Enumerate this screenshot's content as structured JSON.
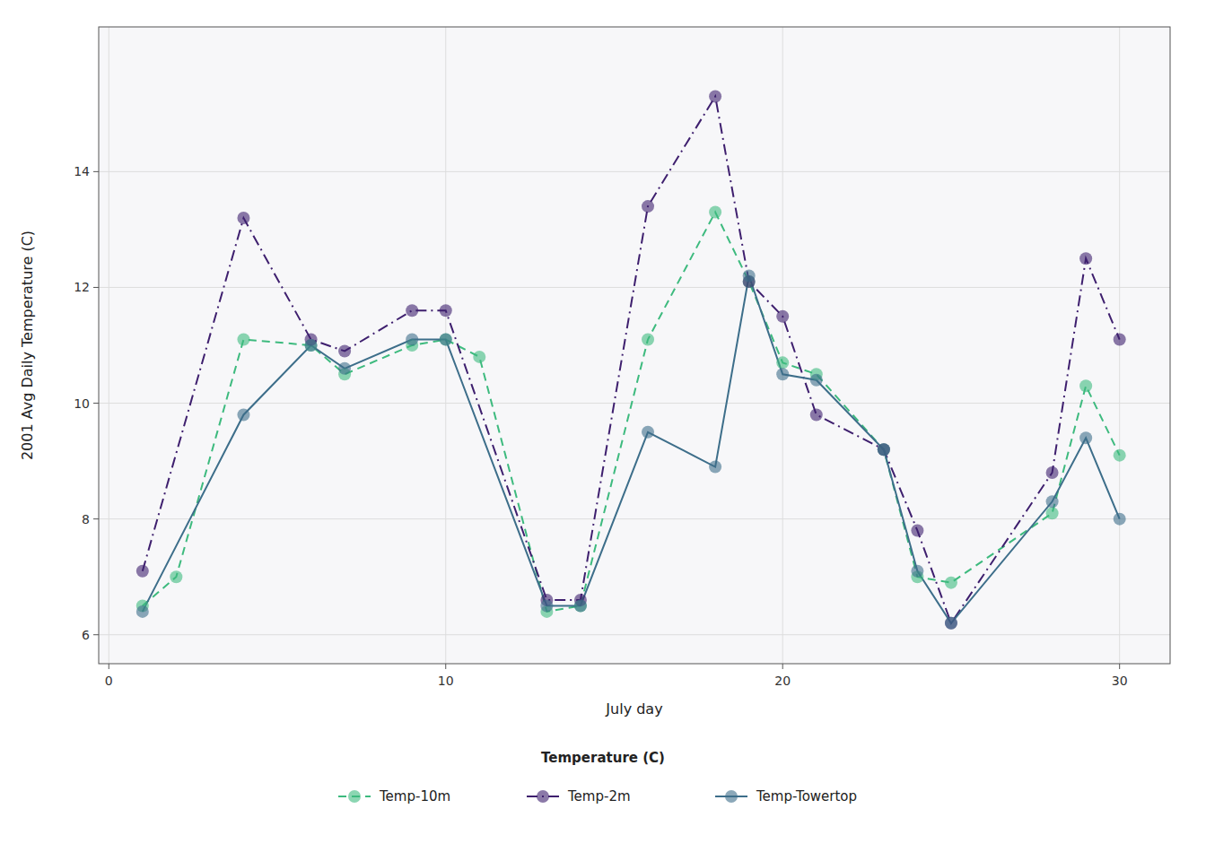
{
  "chart_data": {
    "type": "line",
    "x_label": "July day",
    "y_label": "2001 Avg Daily Temperature (C)",
    "legend_title": "Temperature (C)",
    "legend": "bottom",
    "grid": true,
    "xlim": [
      -0.3,
      31.5
    ],
    "ylim": [
      5.5,
      16.5
    ],
    "xticks": [
      0,
      10,
      20,
      30
    ],
    "yticks": [
      6,
      8,
      10,
      12,
      14
    ],
    "series": [
      {
        "name": "Temp-10m",
        "color": "#3dba7e",
        "line_style": "dashed",
        "marker": "circle",
        "x": [
          1,
          2,
          4,
          6,
          7,
          9,
          10,
          11,
          13,
          14,
          16,
          18,
          19,
          20,
          21,
          23,
          24,
          25,
          28,
          29,
          30
        ],
        "values": [
          6.5,
          7.0,
          11.1,
          11.0,
          10.5,
          11.0,
          11.1,
          10.8,
          6.4,
          6.5,
          11.1,
          13.3,
          12.1,
          10.7,
          10.5,
          9.2,
          7.0,
          6.9,
          8.1,
          10.3,
          9.1
        ]
      },
      {
        "name": "Temp-2m",
        "color": "#3e1f6e",
        "line_style": "dashdot",
        "marker": "circle",
        "x": [
          1,
          4,
          6,
          7,
          9,
          10,
          13,
          14,
          16,
          18,
          19,
          20,
          21,
          23,
          24,
          25,
          28,
          29,
          30
        ],
        "values": [
          7.1,
          13.2,
          11.1,
          10.9,
          11.6,
          11.6,
          6.6,
          6.6,
          13.4,
          15.3,
          12.1,
          11.5,
          9.8,
          9.2,
          7.8,
          6.2,
          8.8,
          12.5,
          11.1
        ]
      },
      {
        "name": "Temp-Towertop",
        "color": "#3d6e8a",
        "line_style": "solid",
        "marker": "circle",
        "x": [
          1,
          4,
          6,
          7,
          9,
          10,
          13,
          14,
          16,
          18,
          19,
          20,
          21,
          23,
          24,
          25,
          28,
          29,
          30
        ],
        "values": [
          6.4,
          9.8,
          11.0,
          10.6,
          11.1,
          11.1,
          6.5,
          6.5,
          9.5,
          8.9,
          12.2,
          10.5,
          10.4,
          9.2,
          7.1,
          6.2,
          8.3,
          9.4,
          8.0
        ]
      }
    ]
  }
}
